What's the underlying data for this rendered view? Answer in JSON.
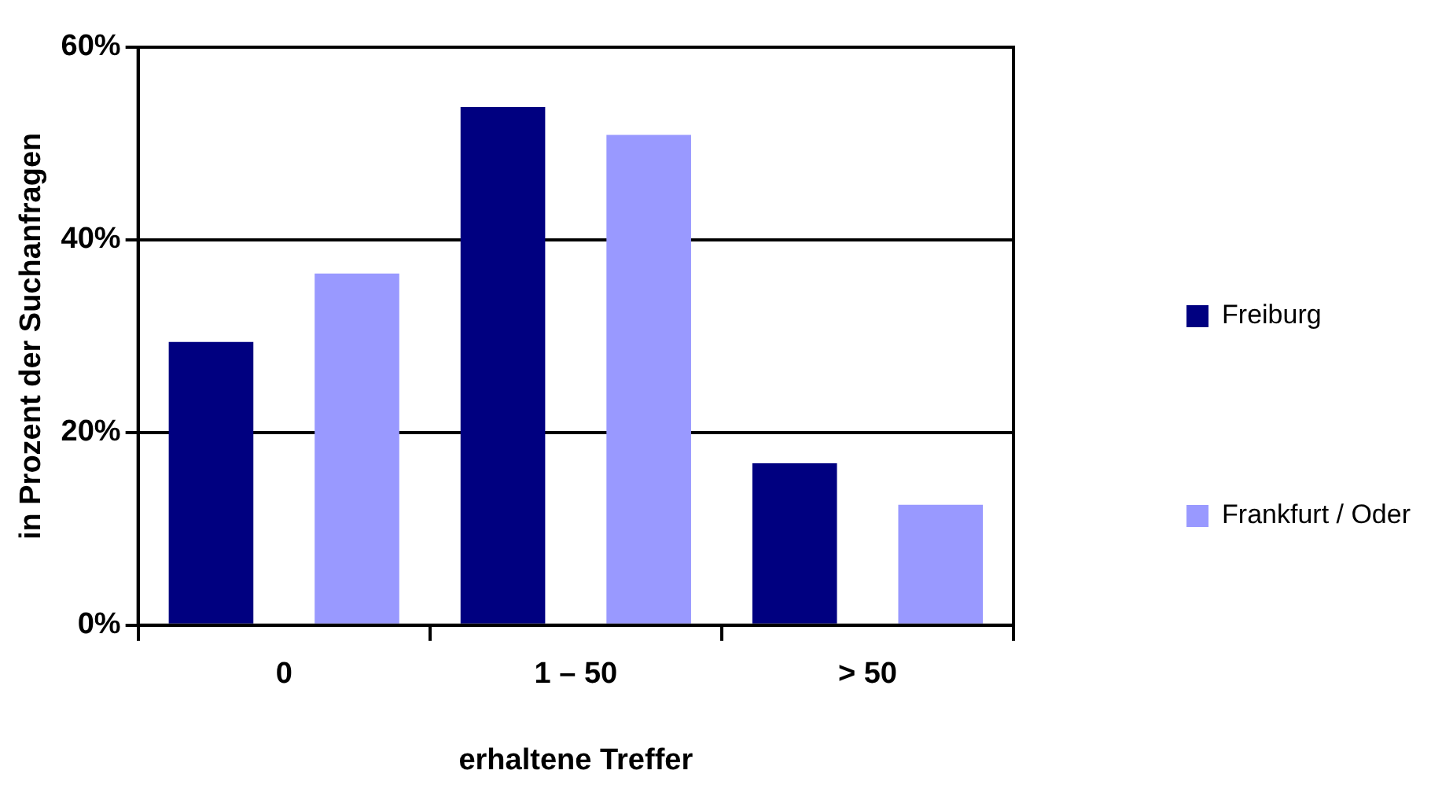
{
  "chart_data": {
    "type": "bar",
    "xlabel": "erhaltene Treffer",
    "ylabel": "in Prozent der Suchanfragen",
    "categories": [
      "0",
      "1 – 50",
      "> 50"
    ],
    "series": [
      {
        "name": "Freiburg",
        "color": "#000080",
        "values": [
          29.4,
          53.8,
          16.8
        ]
      },
      {
        "name": "Frankfurt / Oder",
        "color": "#9999ff",
        "values": [
          36.5,
          50.9,
          12.5
        ]
      }
    ],
    "ylim": [
      0,
      60
    ],
    "yticks": [
      {
        "value": 0,
        "label": "0%"
      },
      {
        "value": 20,
        "label": "20%"
      },
      {
        "value": 40,
        "label": "40%"
      },
      {
        "value": 60,
        "label": "60%"
      }
    ],
    "grid": "y",
    "legend": "right"
  }
}
